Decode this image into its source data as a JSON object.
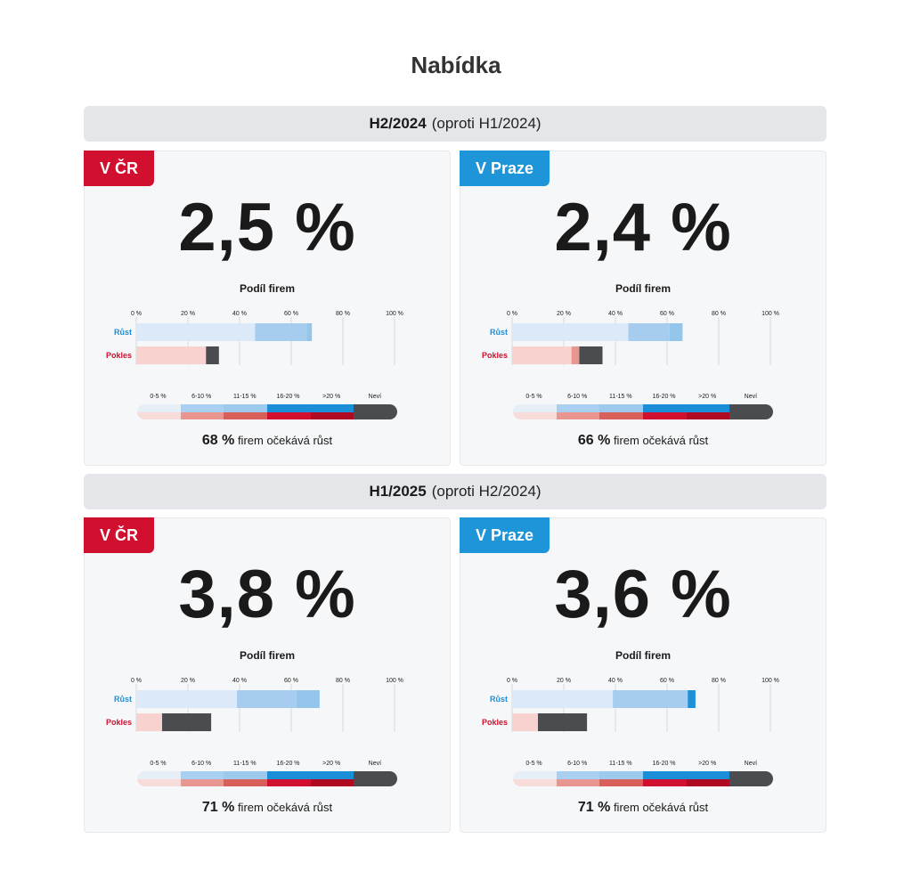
{
  "title": "Nabídka",
  "colors": {
    "rust": [
      "#dce9f8",
      "#a6cdef",
      "#94c5ea",
      "#1f8fd8",
      "#1a6fb8",
      "#4a4c50"
    ],
    "pokles": [
      "#f7d2cf",
      "#e8968f",
      "#d9605a",
      "#d0102e",
      "#b00a22",
      "#4a4c50"
    ],
    "legend_top": [
      "#e6eef8",
      "#a9d0f0",
      "#9cc9ec",
      "#1a8fd8",
      "#1a8fd8",
      "#4a4c50"
    ],
    "legend_bottom": [
      "#f7dcda",
      "#e8968f",
      "#d9605a",
      "#d0102e",
      "#b00a22",
      "#4a4c50"
    ]
  },
  "sections": [
    {
      "period": "H2/2024",
      "compare": "(oproti H1/2024)",
      "cards": [
        {
          "badge": "V ČR",
          "badge_color": "red",
          "value": "2,5 %",
          "share_label": "Podíl firem",
          "expect_pct": "68 %",
          "expect_text": "firem očekává růst"
        },
        {
          "badge": "V Praze",
          "badge_color": "blue",
          "value": "2,4 %",
          "share_label": "Podíl firem",
          "expect_pct": "66 %",
          "expect_text": "firem očekává růst"
        }
      ]
    },
    {
      "period": "H1/2025",
      "compare": "(oproti H2/2024)",
      "cards": [
        {
          "badge": "V ČR",
          "badge_color": "red",
          "value": "3,8 %",
          "share_label": "Podíl firem",
          "expect_pct": "71 %",
          "expect_text": "firem očekává růst"
        },
        {
          "badge": "V Praze",
          "badge_color": "blue",
          "value": "3,6 %",
          "share_label": "Podíl firem",
          "expect_pct": "71 %",
          "expect_text": "firem očekává růst"
        }
      ]
    }
  ],
  "chart_data": [
    {
      "type": "bar",
      "stacked": true,
      "orientation": "horizontal",
      "categories": [
        "Růst",
        "Pokles"
      ],
      "x_ticks": [
        "0 %",
        "20 %",
        "40 %",
        "60 %",
        "80 %",
        "100 %"
      ],
      "xlim": [
        0,
        100
      ],
      "legend": [
        "0-5 %",
        "6-10 %",
        "11-15 %",
        "16-20 %",
        ">20 %",
        "Neví"
      ],
      "series": [
        {
          "name": "0-5 %",
          "values": [
            46,
            27
          ]
        },
        {
          "name": "6-10 %",
          "values": [
            20,
            0
          ]
        },
        {
          "name": "11-15 %",
          "values": [
            2,
            0
          ]
        },
        {
          "name": "16-20 %",
          "values": [
            0,
            0
          ]
        },
        {
          "name": ">20 %",
          "values": [
            0,
            0
          ]
        },
        {
          "name": "Neví",
          "values": [
            0,
            5
          ]
        }
      ]
    },
    {
      "type": "bar",
      "stacked": true,
      "orientation": "horizontal",
      "categories": [
        "Růst",
        "Pokles"
      ],
      "x_ticks": [
        "0 %",
        "20 %",
        "40 %",
        "60 %",
        "80 %",
        "100 %"
      ],
      "xlim": [
        0,
        100
      ],
      "legend": [
        "0-5 %",
        "6-10 %",
        "11-15 %",
        "16-20 %",
        ">20 %",
        "Neví"
      ],
      "series": [
        {
          "name": "0-5 %",
          "values": [
            45,
            23
          ]
        },
        {
          "name": "6-10 %",
          "values": [
            16,
            3
          ]
        },
        {
          "name": "11-15 %",
          "values": [
            5,
            0
          ]
        },
        {
          "name": "16-20 %",
          "values": [
            0,
            0
          ]
        },
        {
          "name": ">20 %",
          "values": [
            0,
            0
          ]
        },
        {
          "name": "Neví",
          "values": [
            0,
            9
          ]
        }
      ]
    },
    {
      "type": "bar",
      "stacked": true,
      "orientation": "horizontal",
      "categories": [
        "Růst",
        "Pokles"
      ],
      "x_ticks": [
        "0 %",
        "20 %",
        "40 %",
        "60 %",
        "80 %",
        "100 %"
      ],
      "xlim": [
        0,
        100
      ],
      "legend": [
        "0-5 %",
        "6-10 %",
        "11-15 %",
        "16-20 %",
        ">20 %",
        "Neví"
      ],
      "series": [
        {
          "name": "0-5 %",
          "values": [
            39,
            10
          ]
        },
        {
          "name": "6-10 %",
          "values": [
            23,
            0
          ]
        },
        {
          "name": "11-15 %",
          "values": [
            9,
            0
          ]
        },
        {
          "name": "16-20 %",
          "values": [
            0,
            0
          ]
        },
        {
          "name": ">20 %",
          "values": [
            0,
            0
          ]
        },
        {
          "name": "Neví",
          "values": [
            0,
            19
          ]
        }
      ]
    },
    {
      "type": "bar",
      "stacked": true,
      "orientation": "horizontal",
      "categories": [
        "Růst",
        "Pokles"
      ],
      "x_ticks": [
        "0 %",
        "20 %",
        "40 %",
        "60 %",
        "80 %",
        "100 %"
      ],
      "xlim": [
        0,
        100
      ],
      "legend": [
        "0-5 %",
        "6-10 %",
        "11-15 %",
        "16-20 %",
        ">20 %",
        "Neví"
      ],
      "series": [
        {
          "name": "0-5 %",
          "values": [
            39,
            10
          ]
        },
        {
          "name": "6-10 %",
          "values": [
            29,
            0
          ]
        },
        {
          "name": "11-15 %",
          "values": [
            0,
            0
          ]
        },
        {
          "name": "16-20 %",
          "values": [
            3,
            0
          ]
        },
        {
          "name": ">20 %",
          "values": [
            0,
            0
          ]
        },
        {
          "name": "Neví",
          "values": [
            0,
            19
          ]
        }
      ]
    }
  ]
}
